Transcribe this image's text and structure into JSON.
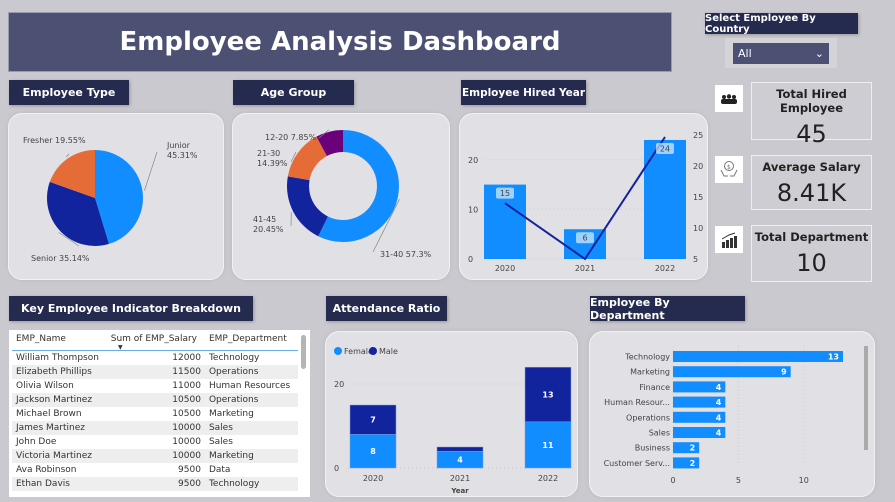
{
  "title": "Employee Analysis Dashboard",
  "filter": {
    "label": "Select Employee  By Country",
    "value": "All"
  },
  "kpis": [
    {
      "label": "Total Hired Employee",
      "value": "45",
      "icon": "people-icon"
    },
    {
      "label": "Average Salary",
      "value": "8.41K",
      "icon": "salary-hand-icon"
    },
    {
      "label": "Total Department",
      "value": "10",
      "icon": "bar-growth-icon"
    }
  ],
  "sections": {
    "employee_type": "Employee Type",
    "age_group": "Age Group",
    "hired_year": "Employee Hired Year",
    "key_indicator": "Key Employee Indicator Breakdown",
    "attendance": "Attendance Ratio",
    "by_department": "Employee By Department"
  },
  "colors": {
    "blue": "#118dff",
    "navy": "#12239e",
    "orange": "#e66c37",
    "purple": "#6b007b"
  },
  "table": {
    "columns": [
      "EMP_Name",
      "Sum of EMP_Salary",
      "EMP_Department"
    ],
    "rows": [
      [
        "William Thompson",
        "12000",
        "Technology"
      ],
      [
        "Elizabeth Phillips",
        "11500",
        "Operations"
      ],
      [
        "Olivia Wilson",
        "11000",
        "Human Resources"
      ],
      [
        "Jackson Martinez",
        "10500",
        "Operations"
      ],
      [
        "Michael Brown",
        "10500",
        "Marketing"
      ],
      [
        "James Martinez",
        "10000",
        "Sales"
      ],
      [
        "John Doe",
        "10000",
        "Sales"
      ],
      [
        "Victoria Martinez",
        "10000",
        "Marketing"
      ],
      [
        "Ava Robinson",
        "9500",
        "Data"
      ],
      [
        "Ethan Davis",
        "9500",
        "Technology"
      ]
    ]
  },
  "chart_data": [
    {
      "type": "pie",
      "title": "Employee Type",
      "slices": [
        {
          "label": "Junior",
          "value": 45.31,
          "text": "Junior\n45.31%",
          "color": "#118dff"
        },
        {
          "label": "Senior",
          "value": 35.14,
          "text": "Senior 35.14%",
          "color": "#12239e"
        },
        {
          "label": "Fresher",
          "value": 19.55,
          "text": "Fresher 19.55%",
          "color": "#e66c37"
        }
      ]
    },
    {
      "type": "pie",
      "donut": true,
      "title": "Age Group",
      "slices": [
        {
          "label": "31-40",
          "value": 57.3,
          "text": "31-40 57.3%",
          "color": "#118dff"
        },
        {
          "label": "41-45",
          "value": 20.45,
          "text": "41-45\n20.45%",
          "color": "#12239e"
        },
        {
          "label": "21-30",
          "value": 14.39,
          "text": "21-30\n14.39%",
          "color": "#e66c37"
        },
        {
          "label": "12-20",
          "value": 7.85,
          "text": "12-20 7.85%",
          "color": "#6b007b"
        }
      ]
    },
    {
      "type": "bar+line",
      "title": "Employee Hired Year",
      "categories": [
        "2020",
        "2021",
        "2022"
      ],
      "bars": [
        15,
        6,
        24
      ],
      "line": [
        15,
        6,
        24
      ],
      "y_left": {
        "range": [
          0,
          25
        ],
        "ticks": [
          "0",
          "10",
          "20"
        ]
      },
      "y_right": {
        "range": [
          5,
          25
        ],
        "ticks": [
          "5",
          "10",
          "15",
          "20",
          "25"
        ]
      }
    },
    {
      "type": "stacked-bar",
      "title": "Attendance Ratio",
      "categories": [
        "2020",
        "2021",
        "2022"
      ],
      "xlabel": "Year",
      "series": [
        {
          "name": "Female",
          "values": [
            8,
            4,
            11
          ],
          "color": "#118dff"
        },
        {
          "name": "Male",
          "values": [
            7,
            1,
            13
          ],
          "color": "#12239e"
        }
      ],
      "yticks": [
        "0",
        "20"
      ],
      "ylim": [
        0,
        25
      ],
      "legend": "top-left"
    },
    {
      "type": "hbar",
      "title": "Employee By Department",
      "categories": [
        "Technology",
        "Marketing",
        "Finance",
        "Human Resour...",
        "Operations",
        "Sales",
        "Business",
        "Customer Serv..."
      ],
      "values": [
        13,
        9,
        4,
        4,
        4,
        4,
        2,
        2
      ],
      "xticks": [
        "0",
        "5",
        "10"
      ],
      "xlim": [
        0,
        14
      ]
    }
  ]
}
